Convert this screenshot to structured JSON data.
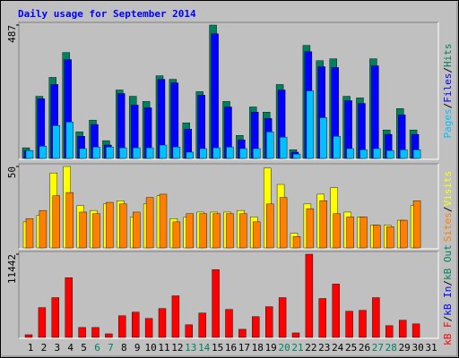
{
  "chart_data": [
    {
      "type": "bar",
      "title": "Daily usage for September 2014",
      "categories": [
        "1",
        "2",
        "3",
        "4",
        "5",
        "6",
        "7",
        "8",
        "9",
        "10",
        "11",
        "12",
        "13",
        "14",
        "15",
        "16",
        "17",
        "18",
        "19",
        "20",
        "21",
        "22",
        "23",
        "24",
        "25",
        "26",
        "27",
        "28",
        "29",
        "30",
        "31"
      ],
      "category_colors": [
        "#000000",
        "#000000",
        "#000000",
        "#000000",
        "#000000",
        "#00805c",
        "#00805c",
        "#000000",
        "#000000",
        "#000000",
        "#000000",
        "#000000",
        "#00805c",
        "#00805c",
        "#000000",
        "#000000",
        "#000000",
        "#000000",
        "#000000",
        "#00805c",
        "#00805c",
        "#000000",
        "#000000",
        "#000000",
        "#000000",
        "#000000",
        "#00805c",
        "#00805c",
        "#000000",
        "#000000",
        "#000000"
      ],
      "legend_separator": "/",
      "ylim": [
        0,
        487
      ],
      "yticks": [
        487
      ],
      "series": [
        {
          "name": "Hits",
          "color": "#00805c",
          "values": [
            39,
            227,
            296,
            387,
            97,
            140,
            65,
            250,
            227,
            208,
            302,
            289,
            130,
            244,
            487,
            208,
            84,
            188,
            169,
            270,
            32,
            413,
            357,
            364,
            227,
            221,
            364,
            104,
            182,
            104,
            0
          ]
        },
        {
          "name": "Files",
          "color": "#0000ff",
          "values": [
            29,
            218,
            270,
            361,
            81,
            124,
            49,
            237,
            195,
            185,
            289,
            276,
            107,
            231,
            455,
            188,
            68,
            169,
            146,
            250,
            23,
            390,
            335,
            332,
            211,
            201,
            338,
            88,
            159,
            88,
            0
          ]
        },
        {
          "name": "Pages",
          "color": "#00c0ff",
          "values": [
            29,
            45,
            120,
            133,
            36,
            42,
            42,
            39,
            39,
            39,
            49,
            42,
            23,
            36,
            39,
            42,
            36,
            36,
            97,
            78,
            16,
            247,
            149,
            81,
            36,
            32,
            36,
            29,
            32,
            32,
            0
          ]
        }
      ]
    },
    {
      "type": "bar",
      "ylim": [
        0,
        50
      ],
      "yticks": [
        50
      ],
      "series": [
        {
          "name": "Visits",
          "color": "#ffff00",
          "values": [
            16,
            20,
            46,
            50,
            26,
            23,
            27,
            29,
            19,
            27,
            32,
            18,
            19,
            22,
            22,
            22,
            23,
            19,
            49,
            39,
            9,
            27,
            33,
            37,
            22,
            19,
            14,
            14,
            17,
            26,
            0
          ]
        },
        {
          "name": "Sites",
          "color": "#ff8000",
          "values": [
            18,
            23,
            32,
            34,
            22,
            21,
            28,
            27,
            22,
            31,
            33,
            16,
            21,
            21,
            21,
            21,
            21,
            16,
            27,
            31,
            7,
            24,
            29,
            21,
            19,
            19,
            14,
            13,
            17,
            29,
            0
          ]
        }
      ]
    },
    {
      "type": "bar",
      "ylim": [
        0,
        11442
      ],
      "yticks": [
        11442
      ],
      "series": [
        {
          "name": "kB F",
          "color": "#ff0000",
          "values": [
            373,
            4104,
            5472,
            8209,
            1368,
            1368,
            497,
            2985,
            3482,
            2612,
            3980,
            5721,
            1741,
            3358,
            9328,
            3855,
            1119,
            2861,
            4229,
            5472,
            622,
            11442,
            5348,
            7338,
            3607,
            3731,
            5472,
            1617,
            2363,
            1865,
            0
          ]
        },
        {
          "name": "kB In",
          "color": "#0000ff",
          "values": [
            null,
            null,
            null,
            null,
            null,
            null,
            null,
            null,
            null,
            null,
            null,
            null,
            null,
            null,
            null,
            null,
            null,
            null,
            null,
            null,
            null,
            null,
            null,
            null,
            null,
            null,
            null,
            null,
            null,
            null,
            null
          ]
        },
        {
          "name": "kB Out",
          "color": "#00805c",
          "values": [
            null,
            null,
            null,
            null,
            null,
            null,
            null,
            null,
            null,
            null,
            null,
            null,
            null,
            null,
            null,
            null,
            null,
            null,
            null,
            null,
            null,
            null,
            null,
            null,
            null,
            null,
            null,
            null,
            null,
            null,
            null
          ]
        }
      ]
    }
  ]
}
